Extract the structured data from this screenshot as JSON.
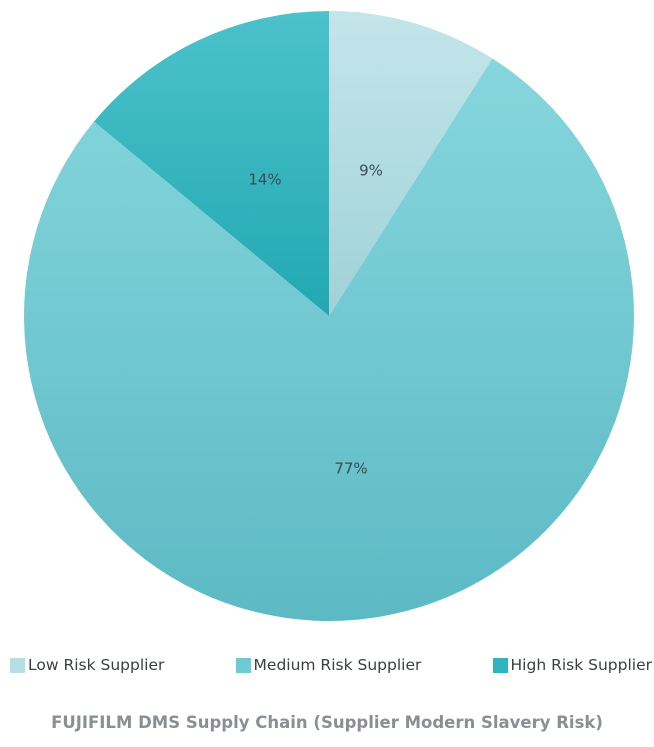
{
  "chart_data": {
    "type": "pie",
    "title": "FUJIFILM DMS Supply Chain (Supplier Modern Slavery Risk)",
    "categories": [
      "Low Risk Supplier",
      "Medium Risk Supplier",
      "High Risk Supplier"
    ],
    "values": [
      9,
      77,
      14
    ],
    "labels": [
      "9%",
      "77%",
      "14%"
    ],
    "colors": [
      "#b5dfe5",
      "#6ccbd3",
      "#2fb3bd"
    ],
    "legend": "bottom"
  }
}
